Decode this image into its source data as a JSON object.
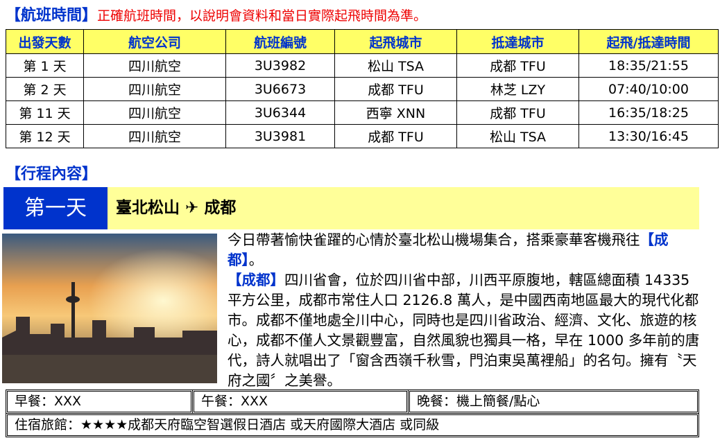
{
  "flight": {
    "title": "【航班時間】",
    "note": "正確航班時間，以說明會資料和當日實際起飛時間為準。",
    "headers": [
      "出發天數",
      "航空公司",
      "航班編號",
      "起飛城市",
      "抵達城市",
      "起飛/抵達時間"
    ],
    "rows": [
      [
        "第 1 天",
        "四川航空",
        "3U3982",
        "松山 TSA",
        "成都 TFU",
        "18:35/21:55"
      ],
      [
        "第 2 天",
        "四川航空",
        "3U6673",
        "成都 TFU",
        "林芝 LZY",
        "07:40/10:00"
      ],
      [
        "第 11 天",
        "四川航空",
        "3U6344",
        "西寧 XNN",
        "成都 TFU",
        "16:35/18:25"
      ],
      [
        "第 12 天",
        "四川航空",
        "3U3981",
        "成都 TFU",
        "松山 TSA",
        "13:30/16:45"
      ]
    ]
  },
  "itinerary": {
    "title": "【行程內容】",
    "day": {
      "label": "第一天",
      "from": "臺北松山",
      "arrow": "✈",
      "to": "成都"
    },
    "description": [
      "今日帶著愉快雀躍的心情於臺北松山機場集合，搭乘豪華客機飛往",
      "【成都】",
      "。",
      "【成都】",
      "四川省會，位於四川省中部，川西平原腹地，轄區總面積 14335 平方公里，成都市常住人口 2126.8 萬人，是中國西南地區最大的現代化都市。成都不僅地處全川中心，同時也是四川省政治、經濟、文化、旅遊的核心，成都不僅人文景觀豐富，自然風貌也獨具一格，早在 1000 多年前的唐代，詩人就唱出了「窗含西嶺千秋雪，門泊東吳萬裡船」的名句。擁有〝天府之國〞之美譽。"
    ],
    "meals": {
      "breakfast": "早餐：XXX",
      "lunch": "午餐：XXX",
      "dinner": "晚餐：機上簡餐/點心"
    },
    "hotel": "住宿旅館：★★★★成都天府臨空智選假日酒店  或天府國際大酒店  或同級"
  }
}
